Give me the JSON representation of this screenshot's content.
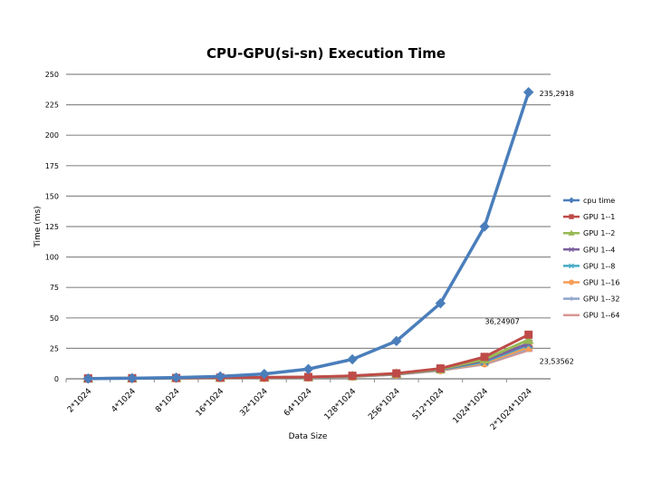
{
  "chart_data": {
    "type": "line",
    "title": "CPU-GPU(si-sn) Execution Time",
    "xlabel": "Data Size",
    "ylabel": "Time (ms)",
    "ylim": [
      0,
      250
    ],
    "yticks": [
      "0",
      "25",
      "50",
      "75",
      "100",
      "125",
      "150",
      "175",
      "200",
      "225",
      "250"
    ],
    "grid": "horizontal",
    "legend_position": "right",
    "categories": [
      "2*1024",
      "4*1024",
      "8*1024",
      "16*1024",
      "32*1024",
      "64*1024",
      "128*1024",
      "256*1024",
      "512*1024",
      "1024*1024",
      "2*1024*1024"
    ],
    "series": [
      {
        "name": "cpu time",
        "color": "#4a7ebb",
        "marker": "diamond",
        "values": [
          0.2,
          0.5,
          1,
          2,
          4,
          8,
          16,
          31,
          62,
          125,
          235.2918
        ]
      },
      {
        "name": "GPU 1--1",
        "color": "#be4b48",
        "marker": "square",
        "values": [
          0.3,
          0.5,
          0.7,
          1,
          1.2,
          1.5,
          2.5,
          4.5,
          8.5,
          18,
          36.24907
        ]
      },
      {
        "name": "GPU 1--2",
        "color": "#98b954",
        "marker": "triangle",
        "values": [
          0.3,
          0.5,
          0.7,
          0.9,
          1.1,
          1.4,
          2.3,
          4.2,
          8,
          16,
          32
        ]
      },
      {
        "name": "GPU 1--4",
        "color": "#7d60a0",
        "marker": "x",
        "values": [
          0.3,
          0.5,
          0.7,
          0.9,
          1.1,
          1.4,
          2.2,
          4,
          7.8,
          15,
          29
        ]
      },
      {
        "name": "GPU 1--8",
        "color": "#46aac5",
        "marker": "x",
        "values": [
          0.3,
          0.5,
          0.6,
          0.9,
          1,
          1.3,
          2.1,
          3.9,
          7.6,
          14,
          28
        ]
      },
      {
        "name": "GPU 1--16",
        "color": "#f59d56",
        "marker": "circle",
        "values": [
          0.3,
          0.4,
          0.6,
          0.8,
          1,
          1.3,
          2,
          3.8,
          7.4,
          13,
          26
        ]
      },
      {
        "name": "GPU 1--32",
        "color": "#8ea5cb",
        "marker": "plus",
        "values": [
          0.3,
          0.4,
          0.6,
          0.8,
          1,
          1.2,
          2,
          3.7,
          7.2,
          12.5,
          25
        ]
      },
      {
        "name": "GPU 1--64",
        "color": "#d99694",
        "marker": "dash",
        "values": [
          0.3,
          0.4,
          0.6,
          0.8,
          1,
          1.2,
          1.9,
          3.6,
          7,
          12,
          23.53562
        ]
      }
    ],
    "data_labels": [
      "235,2918",
      "36,24907",
      "23,53562"
    ]
  }
}
